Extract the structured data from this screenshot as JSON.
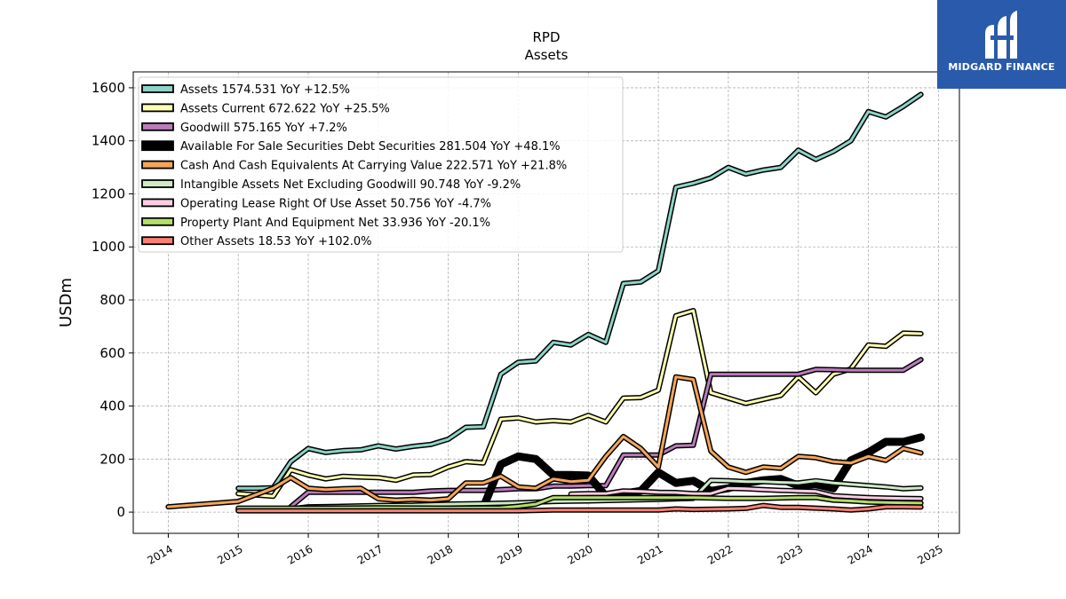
{
  "brand": {
    "name": "MIDGARD FINANCE",
    "color": "#2a5aab"
  },
  "chart_data": {
    "type": "line",
    "title": "RPD",
    "subtitle": "Assets",
    "xlabel": "",
    "ylabel": "USDm",
    "xlim": [
      2013.5,
      2025.3
    ],
    "ylim": [
      -80,
      1660
    ],
    "x_ticks": [
      "2014",
      "2015",
      "2016",
      "2017",
      "2018",
      "2019",
      "2020",
      "2021",
      "2022",
      "2023",
      "2024",
      "2025"
    ],
    "y_ticks": [
      "0",
      "200",
      "400",
      "600",
      "800",
      "1000",
      "1200",
      "1400",
      "1600"
    ],
    "grid": true,
    "legend_position": "top-left",
    "series": [
      {
        "name": "Assets",
        "legend": "Assets  1574.531 YoY +12.5%",
        "color": "#8dd3c7",
        "width": 3,
        "points": [
          [
            2015.0,
            90
          ],
          [
            2015.25,
            90
          ],
          [
            2015.5,
            92
          ],
          [
            2015.75,
            190
          ],
          [
            2016.0,
            240
          ],
          [
            2016.25,
            225
          ],
          [
            2016.5,
            232
          ],
          [
            2016.75,
            235
          ],
          [
            2017.0,
            250
          ],
          [
            2017.25,
            238
          ],
          [
            2017.5,
            248
          ],
          [
            2017.75,
            255
          ],
          [
            2018.0,
            275
          ],
          [
            2018.25,
            320
          ],
          [
            2018.5,
            322
          ],
          [
            2018.75,
            520
          ],
          [
            2019.0,
            565
          ],
          [
            2019.25,
            570
          ],
          [
            2019.5,
            640
          ],
          [
            2019.75,
            630
          ],
          [
            2020.0,
            670
          ],
          [
            2020.25,
            640
          ],
          [
            2020.5,
            862
          ],
          [
            2020.75,
            868
          ],
          [
            2021.0,
            910
          ],
          [
            2021.25,
            1225
          ],
          [
            2021.5,
            1240
          ],
          [
            2021.75,
            1260
          ],
          [
            2022.0,
            1300
          ],
          [
            2022.25,
            1275
          ],
          [
            2022.5,
            1290
          ],
          [
            2022.75,
            1300
          ],
          [
            2023.0,
            1365
          ],
          [
            2023.25,
            1330
          ],
          [
            2023.5,
            1360
          ],
          [
            2023.75,
            1400
          ],
          [
            2024.0,
            1510
          ],
          [
            2024.25,
            1490
          ],
          [
            2024.5,
            1530
          ],
          [
            2024.75,
            1575
          ]
        ]
      },
      {
        "name": "Assets Current",
        "legend": "Assets Current  672.622 YoY +25.5%",
        "color": "#ffffb3",
        "width": 3,
        "points": [
          [
            2015.0,
            70
          ],
          [
            2015.25,
            65
          ],
          [
            2015.5,
            60
          ],
          [
            2015.75,
            160
          ],
          [
            2016.0,
            140
          ],
          [
            2016.25,
            125
          ],
          [
            2016.5,
            135
          ],
          [
            2016.75,
            132
          ],
          [
            2017.0,
            130
          ],
          [
            2017.25,
            120
          ],
          [
            2017.5,
            140
          ],
          [
            2017.75,
            142
          ],
          [
            2018.0,
            170
          ],
          [
            2018.25,
            190
          ],
          [
            2018.5,
            185
          ],
          [
            2018.75,
            350
          ],
          [
            2019.0,
            355
          ],
          [
            2019.25,
            340
          ],
          [
            2019.5,
            345
          ],
          [
            2019.75,
            340
          ],
          [
            2020.0,
            365
          ],
          [
            2020.25,
            340
          ],
          [
            2020.5,
            430
          ],
          [
            2020.75,
            432
          ],
          [
            2021.0,
            460
          ],
          [
            2021.25,
            740
          ],
          [
            2021.5,
            760
          ],
          [
            2021.75,
            450
          ],
          [
            2022.0,
            430
          ],
          [
            2022.25,
            410
          ],
          [
            2022.5,
            425
          ],
          [
            2022.75,
            440
          ],
          [
            2023.0,
            510
          ],
          [
            2023.25,
            450
          ],
          [
            2023.5,
            520
          ],
          [
            2023.75,
            540
          ],
          [
            2024.0,
            630
          ],
          [
            2024.25,
            625
          ],
          [
            2024.5,
            675
          ],
          [
            2024.75,
            673
          ]
        ]
      },
      {
        "name": "Goodwill",
        "legend": "Goodwill  575.165 YoY +7.2%",
        "color": "#bebada",
        "stroke": "#b97cbb",
        "width": 3,
        "points": [
          [
            2015.75,
            20
          ],
          [
            2016.0,
            75
          ],
          [
            2016.25,
            75
          ],
          [
            2016.5,
            75
          ],
          [
            2016.75,
            75
          ],
          [
            2017.0,
            75
          ],
          [
            2017.25,
            75
          ],
          [
            2017.5,
            75
          ],
          [
            2017.75,
            80
          ],
          [
            2018.0,
            82
          ],
          [
            2018.25,
            82
          ],
          [
            2018.5,
            82
          ],
          [
            2018.75,
            85
          ],
          [
            2019.0,
            88
          ],
          [
            2019.25,
            88
          ],
          [
            2019.5,
            98
          ],
          [
            2019.75,
            98
          ],
          [
            2020.0,
            100
          ],
          [
            2020.25,
            100
          ],
          [
            2020.5,
            215
          ],
          [
            2020.75,
            215
          ],
          [
            2021.0,
            215
          ],
          [
            2021.25,
            250
          ],
          [
            2021.5,
            252
          ],
          [
            2021.75,
            520
          ],
          [
            2022.0,
            520
          ],
          [
            2022.25,
            520
          ],
          [
            2022.5,
            520
          ],
          [
            2022.75,
            520
          ],
          [
            2023.0,
            520
          ],
          [
            2023.25,
            538
          ],
          [
            2023.5,
            537
          ],
          [
            2023.75,
            535
          ],
          [
            2024.0,
            535
          ],
          [
            2024.25,
            535
          ],
          [
            2024.5,
            535
          ],
          [
            2024.75,
            575
          ]
        ]
      },
      {
        "name": "Available For Sale Securities Debt Securities",
        "legend": "Available For Sale Securities Debt Securities  281.504 YoY +48.1%",
        "color": "#000000",
        "width": 6,
        "points": [
          [
            2018.0,
            20
          ],
          [
            2018.25,
            20
          ],
          [
            2018.5,
            18
          ],
          [
            2018.75,
            180
          ],
          [
            2019.0,
            210
          ],
          [
            2019.25,
            200
          ],
          [
            2019.5,
            140
          ],
          [
            2019.75,
            140
          ],
          [
            2020.0,
            138
          ],
          [
            2020.25,
            60
          ],
          [
            2020.5,
            70
          ],
          [
            2020.75,
            80
          ],
          [
            2021.0,
            150
          ],
          [
            2021.25,
            110
          ],
          [
            2021.5,
            118
          ],
          [
            2021.75,
            80
          ],
          [
            2022.0,
            90
          ],
          [
            2022.25,
            110
          ],
          [
            2022.5,
            120
          ],
          [
            2022.75,
            125
          ],
          [
            2023.0,
            100
          ],
          [
            2023.25,
            105
          ],
          [
            2023.5,
            90
          ],
          [
            2023.75,
            195
          ],
          [
            2024.0,
            225
          ],
          [
            2024.25,
            265
          ],
          [
            2024.5,
            265
          ],
          [
            2024.75,
            282
          ]
        ]
      },
      {
        "name": "Cash And Cash Equivalents At Carrying Value",
        "legend": "Cash And Cash Equivalents At Carrying Value  222.571 YoY +21.8%",
        "color": "#fdb462",
        "stroke": "#f5a55a",
        "width": 3,
        "points": [
          [
            2014.0,
            20
          ],
          [
            2014.5,
            30
          ],
          [
            2015.0,
            40
          ],
          [
            2015.5,
            90
          ],
          [
            2015.75,
            130
          ],
          [
            2016.0,
            90
          ],
          [
            2016.25,
            85
          ],
          [
            2016.5,
            88
          ],
          [
            2016.75,
            90
          ],
          [
            2017.0,
            50
          ],
          [
            2017.25,
            45
          ],
          [
            2017.5,
            48
          ],
          [
            2017.75,
            45
          ],
          [
            2018.0,
            50
          ],
          [
            2018.25,
            110
          ],
          [
            2018.5,
            110
          ],
          [
            2018.75,
            135
          ],
          [
            2019.0,
            95
          ],
          [
            2019.25,
            90
          ],
          [
            2019.5,
            125
          ],
          [
            2019.75,
            115
          ],
          [
            2020.0,
            120
          ],
          [
            2020.25,
            210
          ],
          [
            2020.5,
            285
          ],
          [
            2020.75,
            240
          ],
          [
            2021.0,
            170
          ],
          [
            2021.25,
            510
          ],
          [
            2021.5,
            500
          ],
          [
            2021.75,
            230
          ],
          [
            2022.0,
            170
          ],
          [
            2022.25,
            150
          ],
          [
            2022.5,
            170
          ],
          [
            2022.75,
            165
          ],
          [
            2023.0,
            210
          ],
          [
            2023.25,
            205
          ],
          [
            2023.5,
            190
          ],
          [
            2023.75,
            185
          ],
          [
            2024.0,
            210
          ],
          [
            2024.25,
            195
          ],
          [
            2024.5,
            240
          ],
          [
            2024.75,
            223
          ]
        ]
      },
      {
        "name": "Intangible Assets Net Excluding Goodwill",
        "legend": "Intangible Assets Net Excluding Goodwill  90.748 YoY -9.2%",
        "color": "#ccebc5",
        "width": 3,
        "points": [
          [
            2015.0,
            10
          ],
          [
            2015.75,
            12
          ],
          [
            2016.0,
            20
          ],
          [
            2016.5,
            22
          ],
          [
            2017.0,
            25
          ],
          [
            2017.5,
            26
          ],
          [
            2018.0,
            30
          ],
          [
            2018.5,
            32
          ],
          [
            2019.0,
            35
          ],
          [
            2019.5,
            40
          ],
          [
            2020.0,
            42
          ],
          [
            2020.5,
            45
          ],
          [
            2021.0,
            48
          ],
          [
            2021.5,
            52
          ],
          [
            2021.75,
            120
          ],
          [
            2022.0,
            118
          ],
          [
            2022.25,
            115
          ],
          [
            2022.5,
            115
          ],
          [
            2022.75,
            112
          ],
          [
            2023.0,
            110
          ],
          [
            2023.25,
            118
          ],
          [
            2023.5,
            110
          ],
          [
            2023.75,
            105
          ],
          [
            2024.0,
            100
          ],
          [
            2024.25,
            95
          ],
          [
            2024.5,
            88
          ],
          [
            2024.75,
            91
          ]
        ]
      },
      {
        "name": "Operating Lease Right Of Use Asset",
        "legend": "Operating Lease Right Of Use Asset  50.756 YoY -4.7%",
        "color": "#fccde5",
        "width": 3,
        "points": [
          [
            2019.75,
            68
          ],
          [
            2020.0,
            70
          ],
          [
            2020.25,
            70
          ],
          [
            2020.5,
            80
          ],
          [
            2020.75,
            78
          ],
          [
            2021.0,
            75
          ],
          [
            2021.25,
            74
          ],
          [
            2021.5,
            70
          ],
          [
            2021.75,
            70
          ],
          [
            2022.0,
            90
          ],
          [
            2022.25,
            88
          ],
          [
            2022.5,
            85
          ],
          [
            2022.75,
            82
          ],
          [
            2023.0,
            80
          ],
          [
            2023.25,
            78
          ],
          [
            2023.5,
            62
          ],
          [
            2023.75,
            58
          ],
          [
            2024.0,
            55
          ],
          [
            2024.25,
            53
          ],
          [
            2024.5,
            52
          ],
          [
            2024.75,
            51
          ]
        ]
      },
      {
        "name": "Property Plant And Equipment Net",
        "legend": "Property Plant And Equipment Net  33.936 YoY -20.1%",
        "color": "#b3de69",
        "width": 3,
        "points": [
          [
            2015.0,
            15
          ],
          [
            2016.0,
            15
          ],
          [
            2017.0,
            16
          ],
          [
            2018.0,
            15
          ],
          [
            2018.75,
            16
          ],
          [
            2019.0,
            22
          ],
          [
            2019.25,
            30
          ],
          [
            2019.5,
            55
          ],
          [
            2019.75,
            55
          ],
          [
            2020.0,
            55
          ],
          [
            2020.5,
            55
          ],
          [
            2021.0,
            55
          ],
          [
            2021.5,
            55
          ],
          [
            2022.0,
            52
          ],
          [
            2022.5,
            52
          ],
          [
            2023.0,
            55
          ],
          [
            2023.25,
            55
          ],
          [
            2023.5,
            45
          ],
          [
            2023.75,
            42
          ],
          [
            2024.0,
            38
          ],
          [
            2024.25,
            36
          ],
          [
            2024.5,
            35
          ],
          [
            2024.75,
            34
          ]
        ]
      },
      {
        "name": "Other Assets",
        "legend": "Other Assets  18.53 YoY +102.0%",
        "color": "#fb8072",
        "width": 3,
        "points": [
          [
            2015.0,
            5
          ],
          [
            2016.0,
            5
          ],
          [
            2017.0,
            5
          ],
          [
            2018.0,
            5
          ],
          [
            2019.0,
            5
          ],
          [
            2019.5,
            8
          ],
          [
            2020.0,
            8
          ],
          [
            2020.5,
            8
          ],
          [
            2021.0,
            8
          ],
          [
            2021.25,
            12
          ],
          [
            2021.5,
            10
          ],
          [
            2022.0,
            12
          ],
          [
            2022.25,
            14
          ],
          [
            2022.5,
            25
          ],
          [
            2022.75,
            18
          ],
          [
            2023.0,
            18
          ],
          [
            2023.5,
            12
          ],
          [
            2023.75,
            8
          ],
          [
            2024.0,
            12
          ],
          [
            2024.25,
            20
          ],
          [
            2024.5,
            20
          ],
          [
            2024.75,
            19
          ]
        ]
      }
    ]
  }
}
